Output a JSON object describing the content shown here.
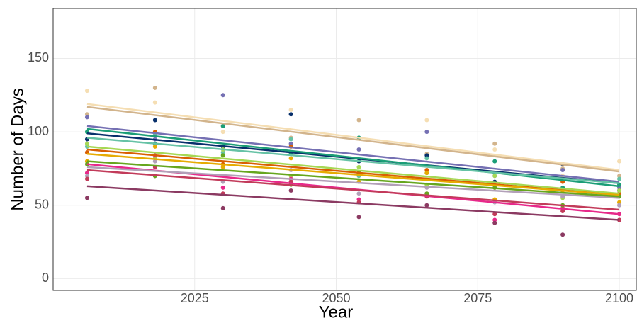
{
  "chart_data": {
    "type": "scatter",
    "xlabel": "Year",
    "ylabel": "Number of Days",
    "xlim": [
      2000,
      2103
    ],
    "ylim": [
      -8,
      184
    ],
    "xticks": [
      2025,
      2050,
      2075,
      2100
    ],
    "yticks": [
      0,
      50,
      100,
      150
    ],
    "grid": true,
    "x": [
      2006,
      2018,
      2030,
      2042,
      2054,
      2066,
      2078,
      2090,
      2100
    ],
    "trend_x": [
      2006,
      2100
    ],
    "series": [
      {
        "color": "#f5deb3",
        "values": [
          128,
          120,
          100,
          115,
          96,
          108,
          88,
          70,
          80
        ],
        "trend": [
          119,
          74
        ]
      },
      {
        "color": "#d2b48c",
        "values": [
          112,
          130,
          104,
          96,
          108,
          85,
          92,
          75,
          70
        ],
        "trend": [
          117,
          73
        ]
      },
      {
        "color": "#7570b3",
        "values": [
          110,
          95,
          125,
          92,
          88,
          100,
          70,
          74,
          62
        ],
        "trend": [
          104,
          66
        ]
      },
      {
        "color": "#08306b",
        "values": [
          95,
          108,
          90,
          112,
          80,
          84,
          66,
          78,
          60
        ],
        "trend": [
          99,
          65
        ]
      },
      {
        "color": "#1b9e77",
        "values": [
          100,
          92,
          104,
          85,
          96,
          72,
          80,
          62,
          64
        ],
        "trend": [
          102,
          63
        ]
      },
      {
        "color": "#66c2a5",
        "values": [
          90,
          98,
          86,
          95,
          70,
          82,
          72,
          60,
          68
        ],
        "trend": [
          96,
          65
        ]
      },
      {
        "color": "#d95f02",
        "values": [
          86,
          100,
          78,
          90,
          72,
          74,
          62,
          66,
          58
        ],
        "trend": [
          88,
          57
        ]
      },
      {
        "color": "#a6d854",
        "values": [
          92,
          82,
          88,
          70,
          76,
          64,
          70,
          55,
          60
        ],
        "trend": [
          90,
          58
        ]
      },
      {
        "color": "#e6ab02",
        "values": [
          80,
          90,
          76,
          82,
          66,
          72,
          54,
          60,
          52
        ],
        "trend": [
          85,
          57
        ]
      },
      {
        "color": "#e7298a",
        "values": [
          72,
          84,
          62,
          68,
          54,
          58,
          40,
          48,
          44
        ],
        "trend": [
          78,
          44
        ]
      },
      {
        "color": "#b2a0b8",
        "values": [
          70,
          80,
          66,
          74,
          58,
          62,
          52,
          56,
          50
        ],
        "trend": [
          76,
          55
        ]
      },
      {
        "color": "#8b3a62",
        "values": [
          55,
          70,
          48,
          60,
          42,
          50,
          38,
          30,
          40
        ],
        "trend": [
          63,
          40
        ]
      },
      {
        "color": "#66a61e",
        "values": [
          78,
          70,
          84,
          64,
          72,
          58,
          62,
          50,
          56
        ],
        "trend": [
          80,
          56
        ]
      },
      {
        "color": "#c23b5a",
        "values": [
          68,
          76,
          58,
          66,
          52,
          56,
          44,
          46,
          40
        ],
        "trend": [
          74,
          47
        ]
      }
    ]
  }
}
